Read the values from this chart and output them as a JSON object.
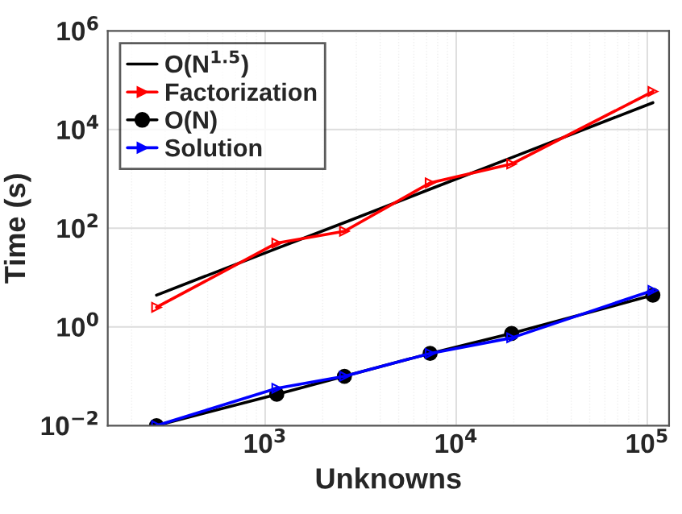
{
  "chart_data": {
    "type": "line",
    "xlabel": "Unknowns",
    "ylabel": "Time (s)",
    "log": "xy",
    "x": [
      270,
      1150,
      2600,
      7300,
      19500,
      107000
    ],
    "series": [
      {
        "name": "O(N$^{1.5}$)",
        "color": "#000000",
        "marker": "none",
        "values": [
          4.4,
          39,
          130,
          620,
          2700,
          35000
        ]
      },
      {
        "name": "Factorization",
        "color": "#ff0000",
        "marker": "triangle",
        "values": [
          2.5,
          50,
          87,
          830,
          2000,
          59000
        ]
      },
      {
        "name": "O(N)",
        "color": "#000000",
        "marker": "circle",
        "values": [
          0.01,
          0.043,
          0.1,
          0.29,
          0.74,
          4.4
        ]
      },
      {
        "name": "Solution",
        "color": "#0000ff",
        "marker": "triangle",
        "values": [
          0.01,
          0.057,
          0.1,
          0.29,
          0.6,
          5.5
        ]
      }
    ],
    "xlim": [
      150,
      130000
    ],
    "ylim": [
      0.01,
      1000000
    ],
    "xticks": [
      {
        "value": 1000,
        "label": "10$^{3}$"
      },
      {
        "value": 10000,
        "label": "10$^{4}$"
      },
      {
        "value": 100000,
        "label": "10$^{5}$"
      }
    ],
    "yticks": [
      {
        "value": 0.01,
        "label": "10$^{−2}$"
      },
      {
        "value": 1,
        "label": "10$^{0}$"
      },
      {
        "value": 100,
        "label": "10$^{2}$"
      },
      {
        "value": 10000,
        "label": "10$^{4}$"
      },
      {
        "value": 1000000,
        "label": "10$^{6}$"
      }
    ],
    "grid": true,
    "legend": "top left"
  }
}
